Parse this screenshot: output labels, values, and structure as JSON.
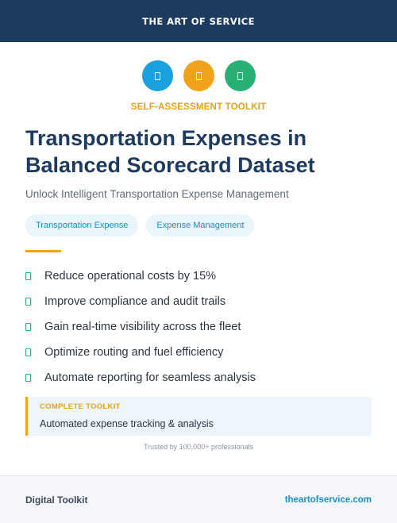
{
  "header": {
    "brand": "THE ART OF SERVICE"
  },
  "icons": [
    {
      "name": "blue-icon",
      "color": "#1aa0dc"
    },
    {
      "name": "orange-icon",
      "color": "#f0a21a"
    },
    {
      "name": "green-icon",
      "color": "#27b174"
    }
  ],
  "eyebrow": "SELF-ASSESSMENT TOOLKIT",
  "title": "Transportation Expenses in Balanced Scorecard Dataset",
  "subtitle": "Unlock Intelligent Transportation Expense Management",
  "tags": [
    "Transportation Expense",
    "Expense Management"
  ],
  "benefits": [
    "Reduce operational costs by 15%",
    "Improve compliance and audit trails",
    "Gain real-time visibility across the fleet",
    "Optimize routing and fuel efficiency",
    "Automate reporting for seamless analysis"
  ],
  "callout": {
    "label": "COMPLETE TOOLKIT",
    "text": "Automated expense tracking & analysis"
  },
  "trusted": "Trusted by 100,000+ professionals",
  "footer": {
    "left": "Digital Toolkit",
    "right": "theartofservice.com"
  },
  "colors": {
    "navy": "#1d3a5f",
    "accent": "#f0a21a",
    "link": "#1a8fc9",
    "check": "#27b174"
  }
}
